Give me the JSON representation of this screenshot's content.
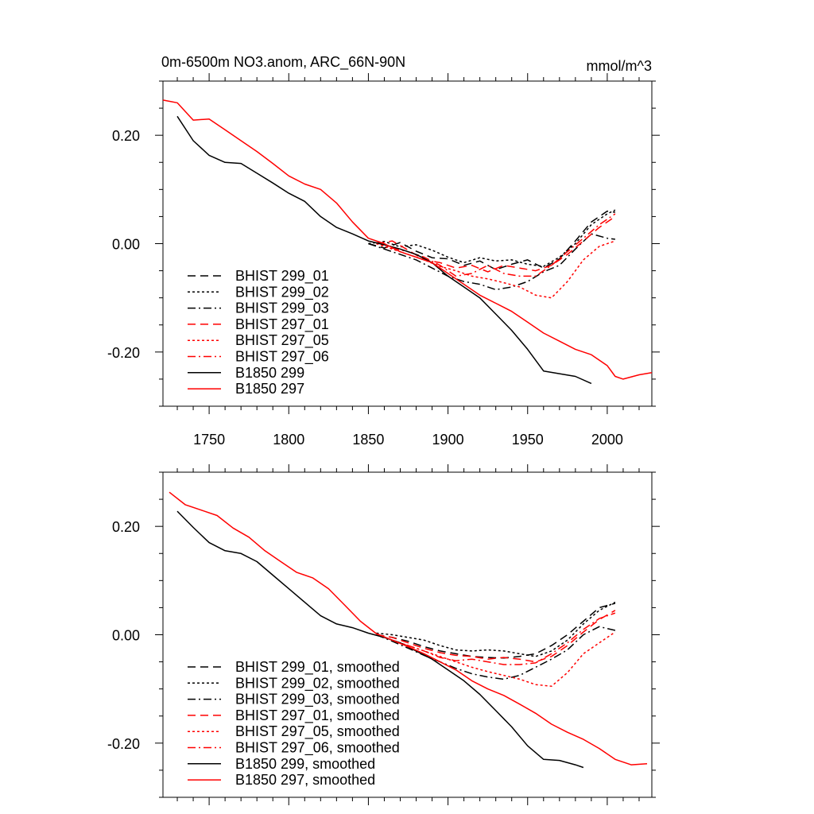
{
  "chart_data": [
    {
      "type": "line",
      "title": "0m-6500m NO3.anom, ARC_66N-90N",
      "units": "mmol/m^3",
      "xlabel": "",
      "ylabel": "",
      "xlim": [
        1721,
        2028
      ],
      "ylim": [
        -0.3,
        0.3
      ],
      "x_ticks": [
        1750,
        1800,
        1850,
        1900,
        1950,
        2000
      ],
      "x_tick_labels": [
        "1750",
        "1800",
        "1850",
        "1900",
        "1950",
        "2000"
      ],
      "y_ticks": [
        0.2,
        0.0,
        -0.2
      ],
      "y_tick_labels": [
        "0.20",
        "0.00",
        "-0.20"
      ],
      "legend": "lower-left",
      "series": [
        {
          "name": "BHIST 299_01",
          "color": "#000000",
          "dash": "dashed",
          "x": [
            1850,
            1860,
            1870,
            1880,
            1890,
            1900,
            1910,
            1920,
            1930,
            1940,
            1950,
            1960,
            1970,
            1980,
            1990,
            2000,
            2005
          ],
          "y": [
            0.0,
            -0.008,
            0.002,
            -0.014,
            -0.026,
            -0.028,
            -0.04,
            -0.032,
            -0.048,
            -0.038,
            -0.03,
            -0.045,
            -0.028,
            0.005,
            0.04,
            0.06,
            0.058
          ]
        },
        {
          "name": "BHIST 299_02",
          "color": "#000000",
          "dash": "dotted",
          "x": [
            1850,
            1860,
            1870,
            1880,
            1890,
            1900,
            1910,
            1920,
            1930,
            1940,
            1950,
            1960,
            1970,
            1980,
            1990,
            2000,
            2005
          ],
          "y": [
            0.0,
            0.004,
            -0.006,
            -0.002,
            -0.012,
            -0.025,
            -0.035,
            -0.026,
            -0.032,
            -0.03,
            -0.038,
            -0.042,
            -0.025,
            0.0,
            0.035,
            0.055,
            0.062
          ]
        },
        {
          "name": "BHIST 299_03",
          "color": "#000000",
          "dash": "dashdot",
          "x": [
            1850,
            1860,
            1870,
            1880,
            1890,
            1900,
            1910,
            1920,
            1930,
            1940,
            1950,
            1960,
            1970,
            1980,
            1990,
            2000,
            2005
          ],
          "y": [
            0.0,
            -0.01,
            -0.02,
            -0.03,
            -0.045,
            -0.06,
            -0.07,
            -0.075,
            -0.085,
            -0.08,
            -0.07,
            -0.052,
            -0.04,
            -0.01,
            0.018,
            0.01,
            0.008
          ]
        },
        {
          "name": "BHIST 297_01",
          "color": "#ff0000",
          "dash": "dashed",
          "x": [
            1855,
            1865,
            1875,
            1885,
            1895,
            1905,
            1915,
            1925,
            1935,
            1945,
            1955,
            1965,
            1975,
            1985,
            1995,
            2005
          ],
          "y": [
            0.0,
            0.005,
            -0.012,
            -0.03,
            -0.035,
            -0.045,
            -0.04,
            -0.052,
            -0.04,
            -0.045,
            -0.05,
            -0.04,
            -0.02,
            0.005,
            0.03,
            0.05
          ]
        },
        {
          "name": "BHIST 297_05",
          "color": "#ff0000",
          "dash": "dotted",
          "x": [
            1855,
            1865,
            1875,
            1885,
            1895,
            1905,
            1915,
            1925,
            1935,
            1945,
            1955,
            1965,
            1975,
            1985,
            1995,
            2005
          ],
          "y": [
            0.0,
            -0.01,
            -0.02,
            -0.03,
            -0.042,
            -0.05,
            -0.06,
            -0.065,
            -0.072,
            -0.08,
            -0.095,
            -0.1,
            -0.07,
            -0.03,
            -0.005,
            0.005
          ]
        },
        {
          "name": "BHIST 297_06",
          "color": "#ff0000",
          "dash": "dashdot",
          "x": [
            1855,
            1865,
            1875,
            1885,
            1895,
            1905,
            1915,
            1925,
            1935,
            1945,
            1955,
            1965,
            1975,
            1985,
            1995,
            2005
          ],
          "y": [
            0.002,
            -0.008,
            -0.015,
            -0.025,
            -0.04,
            -0.06,
            -0.055,
            -0.04,
            -0.055,
            -0.06,
            -0.06,
            -0.04,
            -0.015,
            0.01,
            0.035,
            0.055
          ]
        },
        {
          "name": "B1850 299",
          "color": "#000000",
          "dash": "solid",
          "x": [
            1730,
            1740,
            1750,
            1760,
            1770,
            1780,
            1790,
            1800,
            1810,
            1820,
            1830,
            1840,
            1850,
            1860,
            1870,
            1880,
            1890,
            1900,
            1910,
            1920,
            1930,
            1940,
            1950,
            1960,
            1970,
            1980,
            1990
          ],
          "y": [
            0.235,
            0.19,
            0.163,
            0.15,
            0.148,
            0.13,
            0.112,
            0.093,
            0.078,
            0.05,
            0.03,
            0.018,
            0.005,
            -0.002,
            -0.01,
            -0.02,
            -0.035,
            -0.06,
            -0.08,
            -0.1,
            -0.13,
            -0.16,
            -0.195,
            -0.235,
            -0.24,
            -0.245,
            -0.258
          ]
        },
        {
          "name": "B1850 297",
          "color": "#ff0000",
          "dash": "solid",
          "x": [
            1721,
            1730,
            1740,
            1750,
            1760,
            1770,
            1780,
            1790,
            1800,
            1810,
            1820,
            1830,
            1840,
            1850,
            1860,
            1870,
            1880,
            1890,
            1900,
            1910,
            1920,
            1930,
            1940,
            1950,
            1960,
            1970,
            1980,
            1990,
            2000,
            2005,
            2010,
            2020,
            2028
          ],
          "y": [
            0.265,
            0.26,
            0.228,
            0.23,
            0.21,
            0.19,
            0.17,
            0.148,
            0.125,
            0.11,
            0.1,
            0.075,
            0.04,
            0.01,
            0.0,
            -0.015,
            -0.025,
            -0.035,
            -0.055,
            -0.075,
            -0.095,
            -0.11,
            -0.125,
            -0.145,
            -0.165,
            -0.18,
            -0.195,
            -0.205,
            -0.225,
            -0.245,
            -0.25,
            -0.242,
            -0.238
          ]
        }
      ]
    },
    {
      "type": "line",
      "title": "",
      "xlabel": "",
      "ylabel": "",
      "xlim": [
        1721,
        2028
      ],
      "ylim": [
        -0.3,
        0.3
      ],
      "x_ticks": [
        1750,
        1800,
        1850,
        1900,
        1950,
        2000
      ],
      "x_tick_labels": [],
      "y_ticks": [
        0.2,
        0.0,
        -0.2
      ],
      "y_tick_labels": [
        "0.20",
        "0.00",
        "-0.20"
      ],
      "legend": "lower-left",
      "series": [
        {
          "name": "BHIST 299_01, smoothed",
          "color": "#000000",
          "dash": "dashed",
          "x": [
            1855,
            1865,
            1875,
            1885,
            1895,
            1905,
            1915,
            1925,
            1935,
            1945,
            1955,
            1965,
            1975,
            1985,
            1995,
            2005
          ],
          "y": [
            0.0,
            -0.005,
            -0.012,
            -0.022,
            -0.03,
            -0.035,
            -0.04,
            -0.042,
            -0.043,
            -0.04,
            -0.035,
            -0.02,
            0.0,
            0.025,
            0.05,
            0.058
          ]
        },
        {
          "name": "BHIST 299_02, smoothed",
          "color": "#000000",
          "dash": "dotted",
          "x": [
            1855,
            1865,
            1875,
            1885,
            1895,
            1905,
            1915,
            1925,
            1935,
            1945,
            1955,
            1965,
            1975,
            1985,
            1995,
            2005
          ],
          "y": [
            0.003,
            0.0,
            -0.005,
            -0.01,
            -0.02,
            -0.028,
            -0.03,
            -0.028,
            -0.03,
            -0.035,
            -0.04,
            -0.03,
            -0.01,
            0.02,
            0.045,
            0.06
          ]
        },
        {
          "name": "BHIST 299_03, smoothed",
          "color": "#000000",
          "dash": "dashdot",
          "x": [
            1855,
            1865,
            1875,
            1885,
            1895,
            1905,
            1915,
            1925,
            1935,
            1945,
            1955,
            1965,
            1975,
            1985,
            1995,
            2005
          ],
          "y": [
            0.0,
            -0.012,
            -0.025,
            -0.038,
            -0.05,
            -0.062,
            -0.072,
            -0.078,
            -0.082,
            -0.075,
            -0.06,
            -0.045,
            -0.028,
            0.0,
            0.015,
            0.008
          ]
        },
        {
          "name": "BHIST 297_01, smoothed",
          "color": "#ff0000",
          "dash": "dashed",
          "x": [
            1855,
            1865,
            1875,
            1885,
            1895,
            1905,
            1915,
            1925,
            1935,
            1945,
            1955,
            1965,
            1975,
            1985,
            1995,
            2005
          ],
          "y": [
            0.0,
            -0.005,
            -0.015,
            -0.025,
            -0.033,
            -0.038,
            -0.04,
            -0.045,
            -0.042,
            -0.045,
            -0.05,
            -0.04,
            -0.02,
            0.005,
            0.028,
            0.045
          ]
        },
        {
          "name": "BHIST 297_05, smoothed",
          "color": "#ff0000",
          "dash": "dotted",
          "x": [
            1855,
            1865,
            1875,
            1885,
            1895,
            1905,
            1915,
            1925,
            1935,
            1945,
            1955,
            1965,
            1975,
            1985,
            1995,
            2005
          ],
          "y": [
            0.0,
            -0.01,
            -0.02,
            -0.03,
            -0.04,
            -0.05,
            -0.06,
            -0.068,
            -0.075,
            -0.082,
            -0.092,
            -0.095,
            -0.07,
            -0.035,
            -0.015,
            0.005
          ]
        },
        {
          "name": "BHIST 297_06, smoothed",
          "color": "#ff0000",
          "dash": "dashdot",
          "x": [
            1855,
            1865,
            1875,
            1885,
            1895,
            1905,
            1915,
            1925,
            1935,
            1945,
            1955,
            1965,
            1975,
            1985,
            1995,
            2005
          ],
          "y": [
            0.0,
            -0.01,
            -0.02,
            -0.03,
            -0.042,
            -0.048,
            -0.045,
            -0.05,
            -0.055,
            -0.055,
            -0.052,
            -0.035,
            -0.015,
            0.01,
            0.03,
            0.04
          ]
        },
        {
          "name": "B1850 299, smoothed",
          "color": "#000000",
          "dash": "solid",
          "x": [
            1730,
            1740,
            1750,
            1760,
            1770,
            1780,
            1790,
            1800,
            1810,
            1820,
            1830,
            1840,
            1850,
            1860,
            1870,
            1880,
            1890,
            1900,
            1910,
            1920,
            1930,
            1940,
            1950,
            1960,
            1970,
            1980,
            1985
          ],
          "y": [
            0.228,
            0.198,
            0.17,
            0.155,
            0.15,
            0.135,
            0.11,
            0.085,
            0.06,
            0.035,
            0.02,
            0.013,
            0.003,
            -0.005,
            -0.015,
            -0.03,
            -0.045,
            -0.065,
            -0.085,
            -0.11,
            -0.14,
            -0.17,
            -0.205,
            -0.23,
            -0.232,
            -0.24,
            -0.245
          ]
        },
        {
          "name": "B1850 297, smoothed",
          "color": "#ff0000",
          "dash": "solid",
          "x": [
            1725,
            1735,
            1745,
            1755,
            1765,
            1775,
            1785,
            1795,
            1805,
            1815,
            1825,
            1835,
            1845,
            1855,
            1865,
            1875,
            1885,
            1895,
            1905,
            1915,
            1925,
            1935,
            1945,
            1955,
            1965,
            1975,
            1985,
            1995,
            2005,
            2015,
            2025
          ],
          "y": [
            0.263,
            0.24,
            0.23,
            0.22,
            0.197,
            0.18,
            0.155,
            0.135,
            0.115,
            0.105,
            0.085,
            0.055,
            0.025,
            0.002,
            -0.01,
            -0.022,
            -0.035,
            -0.05,
            -0.065,
            -0.085,
            -0.1,
            -0.112,
            -0.128,
            -0.145,
            -0.165,
            -0.18,
            -0.193,
            -0.21,
            -0.23,
            -0.24,
            -0.238
          ]
        }
      ]
    }
  ]
}
